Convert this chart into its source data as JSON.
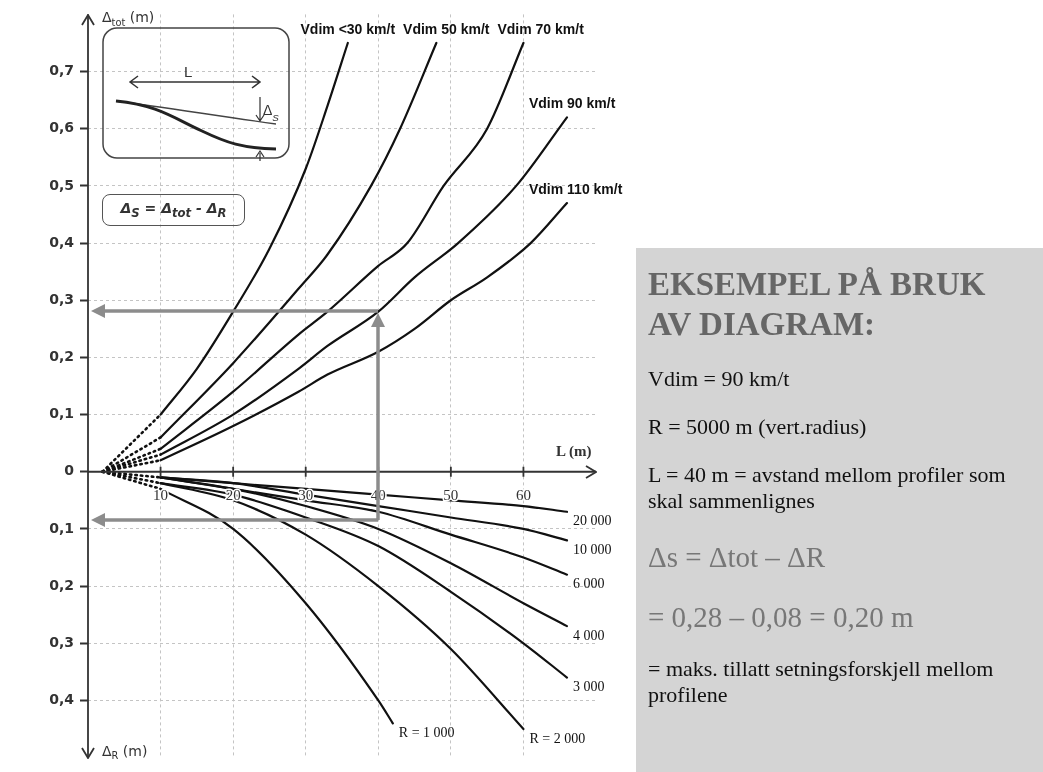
{
  "chart_data": {
    "type": "line",
    "ylabel": "Δ$_{tot}$ (m)",
    "xlabel": "L (m)",
    "annotations": [
      "Δ$_{R}$ (m)",
      "L",
      "Δ$_{S}$",
      "Δ$_{S}$ = Δ$_{tot}$ - Δ$_{R}$",
      "EKSEMPEL PÅ BRUK AV DIAGRAM:",
      "Vdim = 90 km/t",
      "R = 5000 m (vert.radius)",
      "L = 40 m = avstand mellom profiler som skal sammenlignes",
      "Δs = Δtot – ΔR",
      "= 0,28 – 0,08 = 0,20 m",
      "= maks. tillatt setningsforskjell mellom profilene"
    ],
    "xlim": [
      0,
      70
    ],
    "ylim": [
      -0.5,
      0.8
    ],
    "xticks": [
      10,
      20,
      30,
      40,
      50,
      60
    ],
    "yticks": [
      {
        "value": 0.7,
        "label": "0,7"
      },
      {
        "value": 0.6,
        "label": "0,6"
      },
      {
        "value": 0.5,
        "label": "0,5"
      },
      {
        "value": 0.4,
        "label": "0,4"
      },
      {
        "value": 0.3,
        "label": "0,3"
      },
      {
        "value": 0.2,
        "label": "0,2"
      },
      {
        "value": 0.1,
        "label": "0,1"
      },
      0,
      {
        "value": -0.1,
        "label": "0,1"
      },
      {
        "value": -0.2,
        "label": "0,2"
      },
      {
        "value": -0.3,
        "label": "0,3"
      },
      {
        "value": -0.4,
        "label": "0,4"
      }
    ],
    "grid": true,
    "legend": false,
    "marker": "none",
    "line_style": "solid",
    "series": [
      {
        "name": "Vdim <30 km/t",
        "color": "#111111",
        "x": [
          10,
          15,
          20,
          25,
          30,
          33,
          35.8
        ],
        "values": [
          0.1,
          0.18,
          0.28,
          0.39,
          0.53,
          0.64,
          0.75
        ]
      },
      {
        "name": "Vdim 50 km/t",
        "color": "#111111",
        "x": [
          10,
          20,
          29,
          33,
          39,
          43,
          48
        ],
        "values": [
          0.06,
          0.19,
          0.32,
          0.38,
          0.5,
          0.6,
          0.75
        ]
      },
      {
        "name": "Vdim 70 km/t",
        "color": "#111111",
        "x": [
          10,
          20,
          29,
          33,
          40,
          44,
          49,
          55,
          60
        ],
        "values": [
          0.04,
          0.14,
          0.24,
          0.28,
          0.36,
          0.4,
          0.5,
          0.6,
          0.75
        ]
      },
      {
        "name": "Vdim 90 km/t",
        "color": "#111111",
        "x": [
          10,
          20,
          29,
          33,
          40,
          45,
          51,
          59,
          66
        ],
        "values": [
          0.03,
          0.1,
          0.18,
          0.22,
          0.28,
          0.34,
          0.4,
          0.5,
          0.62
        ]
      },
      {
        "name": "Vdim 110 km/t",
        "color": "#111111",
        "x": [
          10,
          20,
          29,
          33,
          40,
          45,
          50,
          55,
          61,
          66
        ],
        "values": [
          0.02,
          0.08,
          0.14,
          0.17,
          0.21,
          0.25,
          0.3,
          0.34,
          0.4,
          0.47
        ]
      },
      {
        "name": "R = 1 000",
        "color": "#111111",
        "x": [
          10,
          20,
          30,
          40,
          42
        ],
        "values": [
          -0.03,
          -0.1,
          -0.23,
          -0.4,
          -0.44
        ]
      },
      {
        "name": "R = 2 000",
        "color": "#111111",
        "x": [
          10,
          20,
          30,
          40,
          50,
          60
        ],
        "values": [
          -0.02,
          -0.05,
          -0.11,
          -0.2,
          -0.31,
          -0.45
        ]
      },
      {
        "name": "3 000",
        "color": "#111111",
        "x": [
          10,
          20,
          30,
          40,
          50,
          60,
          66
        ],
        "values": [
          -0.02,
          -0.04,
          -0.08,
          -0.13,
          -0.21,
          -0.3,
          -0.36
        ]
      },
      {
        "name": "4 000",
        "color": "#111111",
        "x": [
          10,
          20,
          30,
          40,
          50,
          60,
          66
        ],
        "values": [
          -0.01,
          -0.03,
          -0.06,
          -0.1,
          -0.16,
          -0.23,
          -0.27
        ]
      },
      {
        "name": "6 000",
        "color": "#111111",
        "x": [
          10,
          20,
          30,
          40,
          50,
          60,
          66
        ],
        "values": [
          -0.01,
          -0.03,
          -0.05,
          -0.07,
          -0.11,
          -0.15,
          -0.18
        ]
      },
      {
        "name": "10 000",
        "color": "#111111",
        "x": [
          10,
          20,
          30,
          40,
          50,
          60,
          66
        ],
        "values": [
          -0.01,
          -0.02,
          -0.04,
          -0.06,
          -0.08,
          -0.1,
          -0.12
        ]
      },
      {
        "name": "20 000",
        "color": "#111111",
        "x": [
          10,
          20,
          30,
          40,
          50,
          60,
          66
        ],
        "values": [
          -0.01,
          -0.02,
          -0.03,
          -0.04,
          -0.05,
          -0.06,
          -0.07
        ]
      },
      {
        "color": "#111111",
        "line_style": "dotted",
        "x": [
          2,
          10
        ],
        "values": [
          0,
          0.1
        ]
      },
      {
        "color": "#111111",
        "line_style": "dotted",
        "x": [
          2,
          10
        ],
        "values": [
          0,
          0.06
        ]
      },
      {
        "color": "#111111",
        "line_style": "dotted",
        "x": [
          2,
          10
        ],
        "values": [
          0,
          0.04
        ]
      },
      {
        "color": "#111111",
        "line_style": "dotted",
        "x": [
          2,
          10
        ],
        "values": [
          0,
          0.03
        ]
      },
      {
        "color": "#111111",
        "line_style": "dotted",
        "x": [
          2,
          10
        ],
        "values": [
          0,
          0.02
        ]
      },
      {
        "color": "#111111",
        "line_style": "dotted",
        "x": [
          2,
          10
        ],
        "values": [
          0,
          -0.03
        ]
      },
      {
        "color": "#111111",
        "line_style": "dotted",
        "x": [
          2,
          10
        ],
        "values": [
          0,
          -0.02
        ]
      },
      {
        "color": "#111111",
        "line_style": "dotted",
        "x": [
          2,
          10
        ],
        "values": [
          0,
          -0.01
        ]
      }
    ]
  }
}
